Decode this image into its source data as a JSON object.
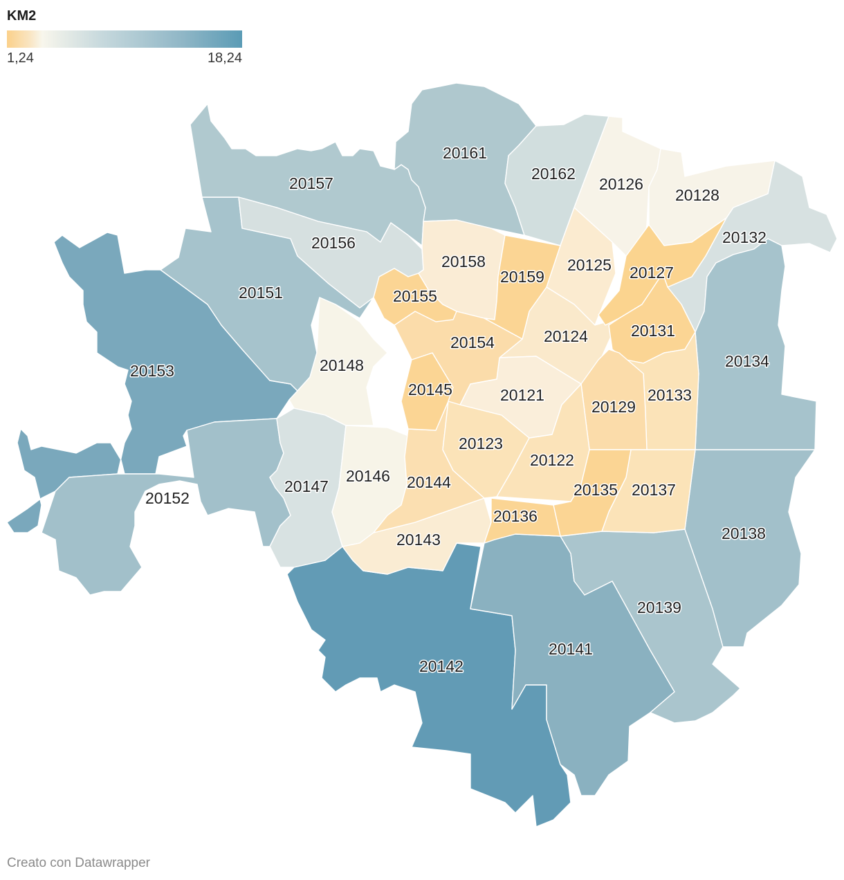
{
  "legend": {
    "title": "KM2",
    "min_label": "1,24",
    "max_label": "18,24",
    "min_value": 1.24,
    "max_value": 18.24,
    "color_low": "#fbd08a",
    "color_mid": "#f8f6ec",
    "color_high": "#5a9bb5"
  },
  "map": {
    "metric": "KM2",
    "zones": [
      {
        "cap": "20121",
        "fill": "#faeeda"
      },
      {
        "cap": "20122",
        "fill": "#fbe3b9"
      },
      {
        "cap": "20123",
        "fill": "#fbe3b8"
      },
      {
        "cap": "20124",
        "fill": "#fae9cb"
      },
      {
        "cap": "20125",
        "fill": "#fbebd0"
      },
      {
        "cap": "20126",
        "fill": "#f7f3e8"
      },
      {
        "cap": "20127",
        "fill": "#fbd48f"
      },
      {
        "cap": "20128",
        "fill": "#f7f3e8"
      },
      {
        "cap": "20129",
        "fill": "#fbdcaa"
      },
      {
        "cap": "20131",
        "fill": "#fbd594"
      },
      {
        "cap": "20132",
        "fill": "#d7e1e1"
      },
      {
        "cap": "20133",
        "fill": "#fbe3b8"
      },
      {
        "cap": "20134",
        "fill": "#a6c3cc"
      },
      {
        "cap": "20135",
        "fill": "#fbd594"
      },
      {
        "cap": "20136",
        "fill": "#fbd594"
      },
      {
        "cap": "20137",
        "fill": "#fbe3b8"
      },
      {
        "cap": "20138",
        "fill": "#a2c0ca"
      },
      {
        "cap": "20139",
        "fill": "#aac5cd"
      },
      {
        "cap": "20141",
        "fill": "#8ab1c0"
      },
      {
        "cap": "20142",
        "fill": "#629bb5"
      },
      {
        "cap": "20143",
        "fill": "#faecd3"
      },
      {
        "cap": "20144",
        "fill": "#fbdfb1"
      },
      {
        "cap": "20145",
        "fill": "#fbd594"
      },
      {
        "cap": "20146",
        "fill": "#f7f4e8"
      },
      {
        "cap": "20147",
        "fill": "#d8e2e2"
      },
      {
        "cap": "20148",
        "fill": "#f7f4e8"
      },
      {
        "cap": "20151",
        "fill": "#a6c3cc"
      },
      {
        "cap": "20152",
        "fill": "#a2c0ca"
      },
      {
        "cap": "20153",
        "fill": "#7aa8bc"
      },
      {
        "cap": "20154",
        "fill": "#fbdcaa"
      },
      {
        "cap": "20155",
        "fill": "#fbd594"
      },
      {
        "cap": "20156",
        "fill": "#d6e0e0"
      },
      {
        "cap": "20157",
        "fill": "#b0c9cf"
      },
      {
        "cap": "20158",
        "fill": "#faecd5"
      },
      {
        "cap": "20159",
        "fill": "#fbd594"
      },
      {
        "cap": "20161",
        "fill": "#afc8ce"
      },
      {
        "cap": "20162",
        "fill": "#d1dede"
      }
    ]
  },
  "credit": "Creato con Datawrapper"
}
